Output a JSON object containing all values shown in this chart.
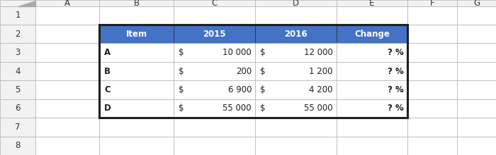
{
  "col_headers": [
    "A",
    "B",
    "C",
    "D",
    "E",
    "F",
    "G"
  ],
  "row_headers": [
    "1",
    "2",
    "3",
    "4",
    "5",
    "6",
    "7",
    "8"
  ],
  "table_headers": [
    "Item",
    "2015",
    "2016",
    "Change"
  ],
  "header_bg": "#4472C4",
  "header_fg": "#FFFFFF",
  "rows": [
    [
      "A",
      "$",
      "10 000",
      "$",
      "12 000",
      "? %"
    ],
    [
      "B",
      "$",
      "200",
      "$",
      "1 200",
      "? %"
    ],
    [
      "C",
      "$",
      "6 900",
      "$",
      "4 200",
      "? %"
    ],
    [
      "D",
      "$",
      "55 000",
      "$",
      "55 000",
      "? %"
    ]
  ],
  "grid_color": "#B0B0B0",
  "border_color": "#1F1F1F",
  "cell_bg": "#FFFFFF",
  "col_header_bg": "#F2F2F2",
  "font_size": 8.5,
  "header_font_size": 8.5,
  "fig_bg": "#FFFFFF"
}
